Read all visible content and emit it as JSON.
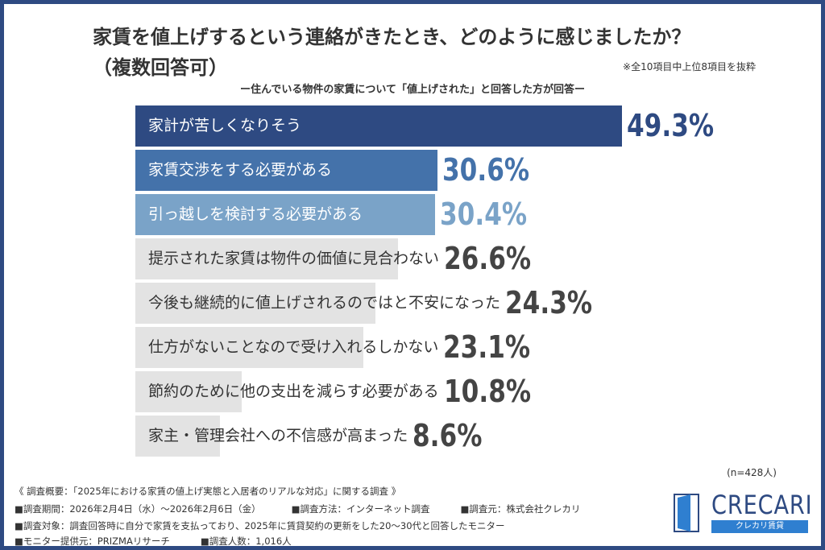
{
  "header": {
    "title": "家賃を値上げするという連絡がきたとき、どのように感じましたか？",
    "title_line2": "（複数回答可）",
    "note": "※全10項目中上位8項目を抜粋",
    "subtitle": "ー住んでいる物件の家賃について「値上げされた」と回答した方が回答ー"
  },
  "chart_data": {
    "type": "bar",
    "orientation": "horizontal",
    "categories": [
      "家計が苦しくなりそう",
      "家賃交渉をする必要がある",
      "引っ越しを検討する必要がある",
      "提示された家賃は物件の価値に見合わない",
      "今後も継続的に値上げされるのではと不安になった",
      "仕方がないことなので受け入れるしかない",
      "節約のために他の支出を減らす必要がある",
      "家主・管理会社への不信感が高まった"
    ],
    "values": [
      49.3,
      30.6,
      30.4,
      26.6,
      24.3,
      23.1,
      10.8,
      8.6
    ],
    "value_labels": [
      "49.3%",
      "30.6%",
      "30.4%",
      "26.6%",
      "24.3%",
      "23.1%",
      "10.8%",
      "8.6%"
    ],
    "bar_colors": [
      "#2e4a82",
      "#4472aa",
      "#7aa3c8",
      "#e3e3e3",
      "#e3e3e3",
      "#e3e3e3",
      "#e3e3e3",
      "#e3e3e3"
    ],
    "label_colors": [
      "#ffffff",
      "#ffffff",
      "#ffffff",
      "#333333",
      "#333333",
      "#333333",
      "#333333",
      "#333333"
    ],
    "value_colors": [
      "#2e4a82",
      "#4472aa",
      "#7aa3c8",
      "#444444",
      "#444444",
      "#444444",
      "#444444",
      "#444444"
    ],
    "xlim": [
      0,
      50
    ],
    "grid": false
  },
  "sample": "(n=428人)",
  "footer": {
    "overview": "《 調査概要：「2025年における家賃の値上げ実態と入居者のリアルな対応」に関する調査 》",
    "period": "■調査期間：2026年2月4日（水）～2026年2月6日（金）",
    "method": "■調査方法：インターネット調査",
    "source": "■調査元：株式会社クレカリ",
    "target": "■調査対象：調査回答時に自分で家賃を支払っており、2025年に賃貸契約の更新をした20～30代と回答したモニター",
    "provider": "■モニター提供元：PRIZMAリサーチ",
    "count": "■調査人数：1,016人"
  },
  "logo": {
    "name": "CRECARI",
    "sub": "クレカリ賃貸",
    "color": "#2e4a82"
  }
}
